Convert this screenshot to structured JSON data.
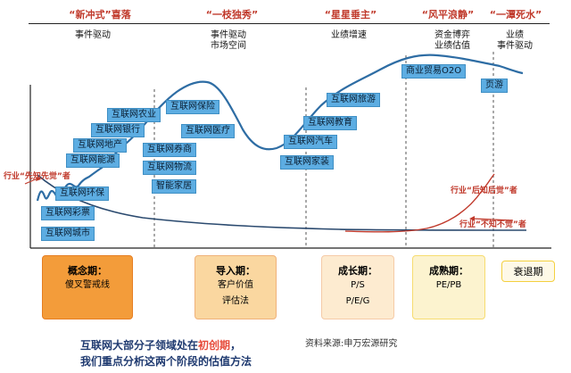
{
  "phases": [
    {
      "title": "“新冲式”喜落",
      "sub": [
        "事件驱动"
      ]
    },
    {
      "title": "“一枝独秀”",
      "sub": [
        "事件驱动",
        "市场空间"
      ]
    },
    {
      "title": "“星星垂主”",
      "sub": [
        "业绩增速"
      ]
    },
    {
      "title": "“风平浪静”",
      "sub": [
        "资金博弈",
        "业绩估值"
      ]
    },
    {
      "title": "“一潭死水”",
      "sub": [
        "业绩",
        "事件驱动"
      ]
    }
  ],
  "tags": [
    "互联网城市",
    "互联网彩票",
    "互联网环保",
    "互联网能源",
    "互联网地产",
    "互联网银行",
    "互联网农业",
    "互联网保险",
    "互联网医疗",
    "互联网券商",
    "互联网物流",
    "智能家居",
    "互联网旅游",
    "互联网教育",
    "互联网汽车",
    "互联网家装",
    "商业贸易O2O",
    "页游"
  ],
  "industry_labels": {
    "first": "行业“先知先觉”者",
    "later": "行业“后知后觉”者",
    "never": "行业“不知不觉”者"
  },
  "stages": [
    {
      "title": "概念期：",
      "lines": [
        "傻叉警戒线"
      ],
      "color": "#f39c3a",
      "border": "#e67e22"
    },
    {
      "title": "导入期：",
      "lines": [
        "客户价值",
        "评估法"
      ],
      "color": "#fad7a0",
      "border": "#f0b27a"
    },
    {
      "title": "成长期：",
      "lines": [
        "P/S",
        "P/E/G"
      ],
      "color": "#fdebd0",
      "border": "#f5cba7"
    },
    {
      "title": "成熟期：",
      "lines": [
        "PE/PB"
      ],
      "color": "#fcf3cf",
      "border": "#f7dc6f"
    },
    {
      "title": "衰退期",
      "lines": [],
      "color": "#fef9e7",
      "border": "#f4d03f"
    }
  ],
  "note": {
    "line1_a": "互联网大部分子领域处在",
    "line1_hl": "初创期",
    "line1_b": "，",
    "line2": "我们重点分析这两个阶段的估值方法"
  },
  "source": "资料来源:申万宏源研究",
  "colors": {
    "curve": "#2e6da4",
    "red": "#c0392b",
    "tag": "#5dade2"
  }
}
